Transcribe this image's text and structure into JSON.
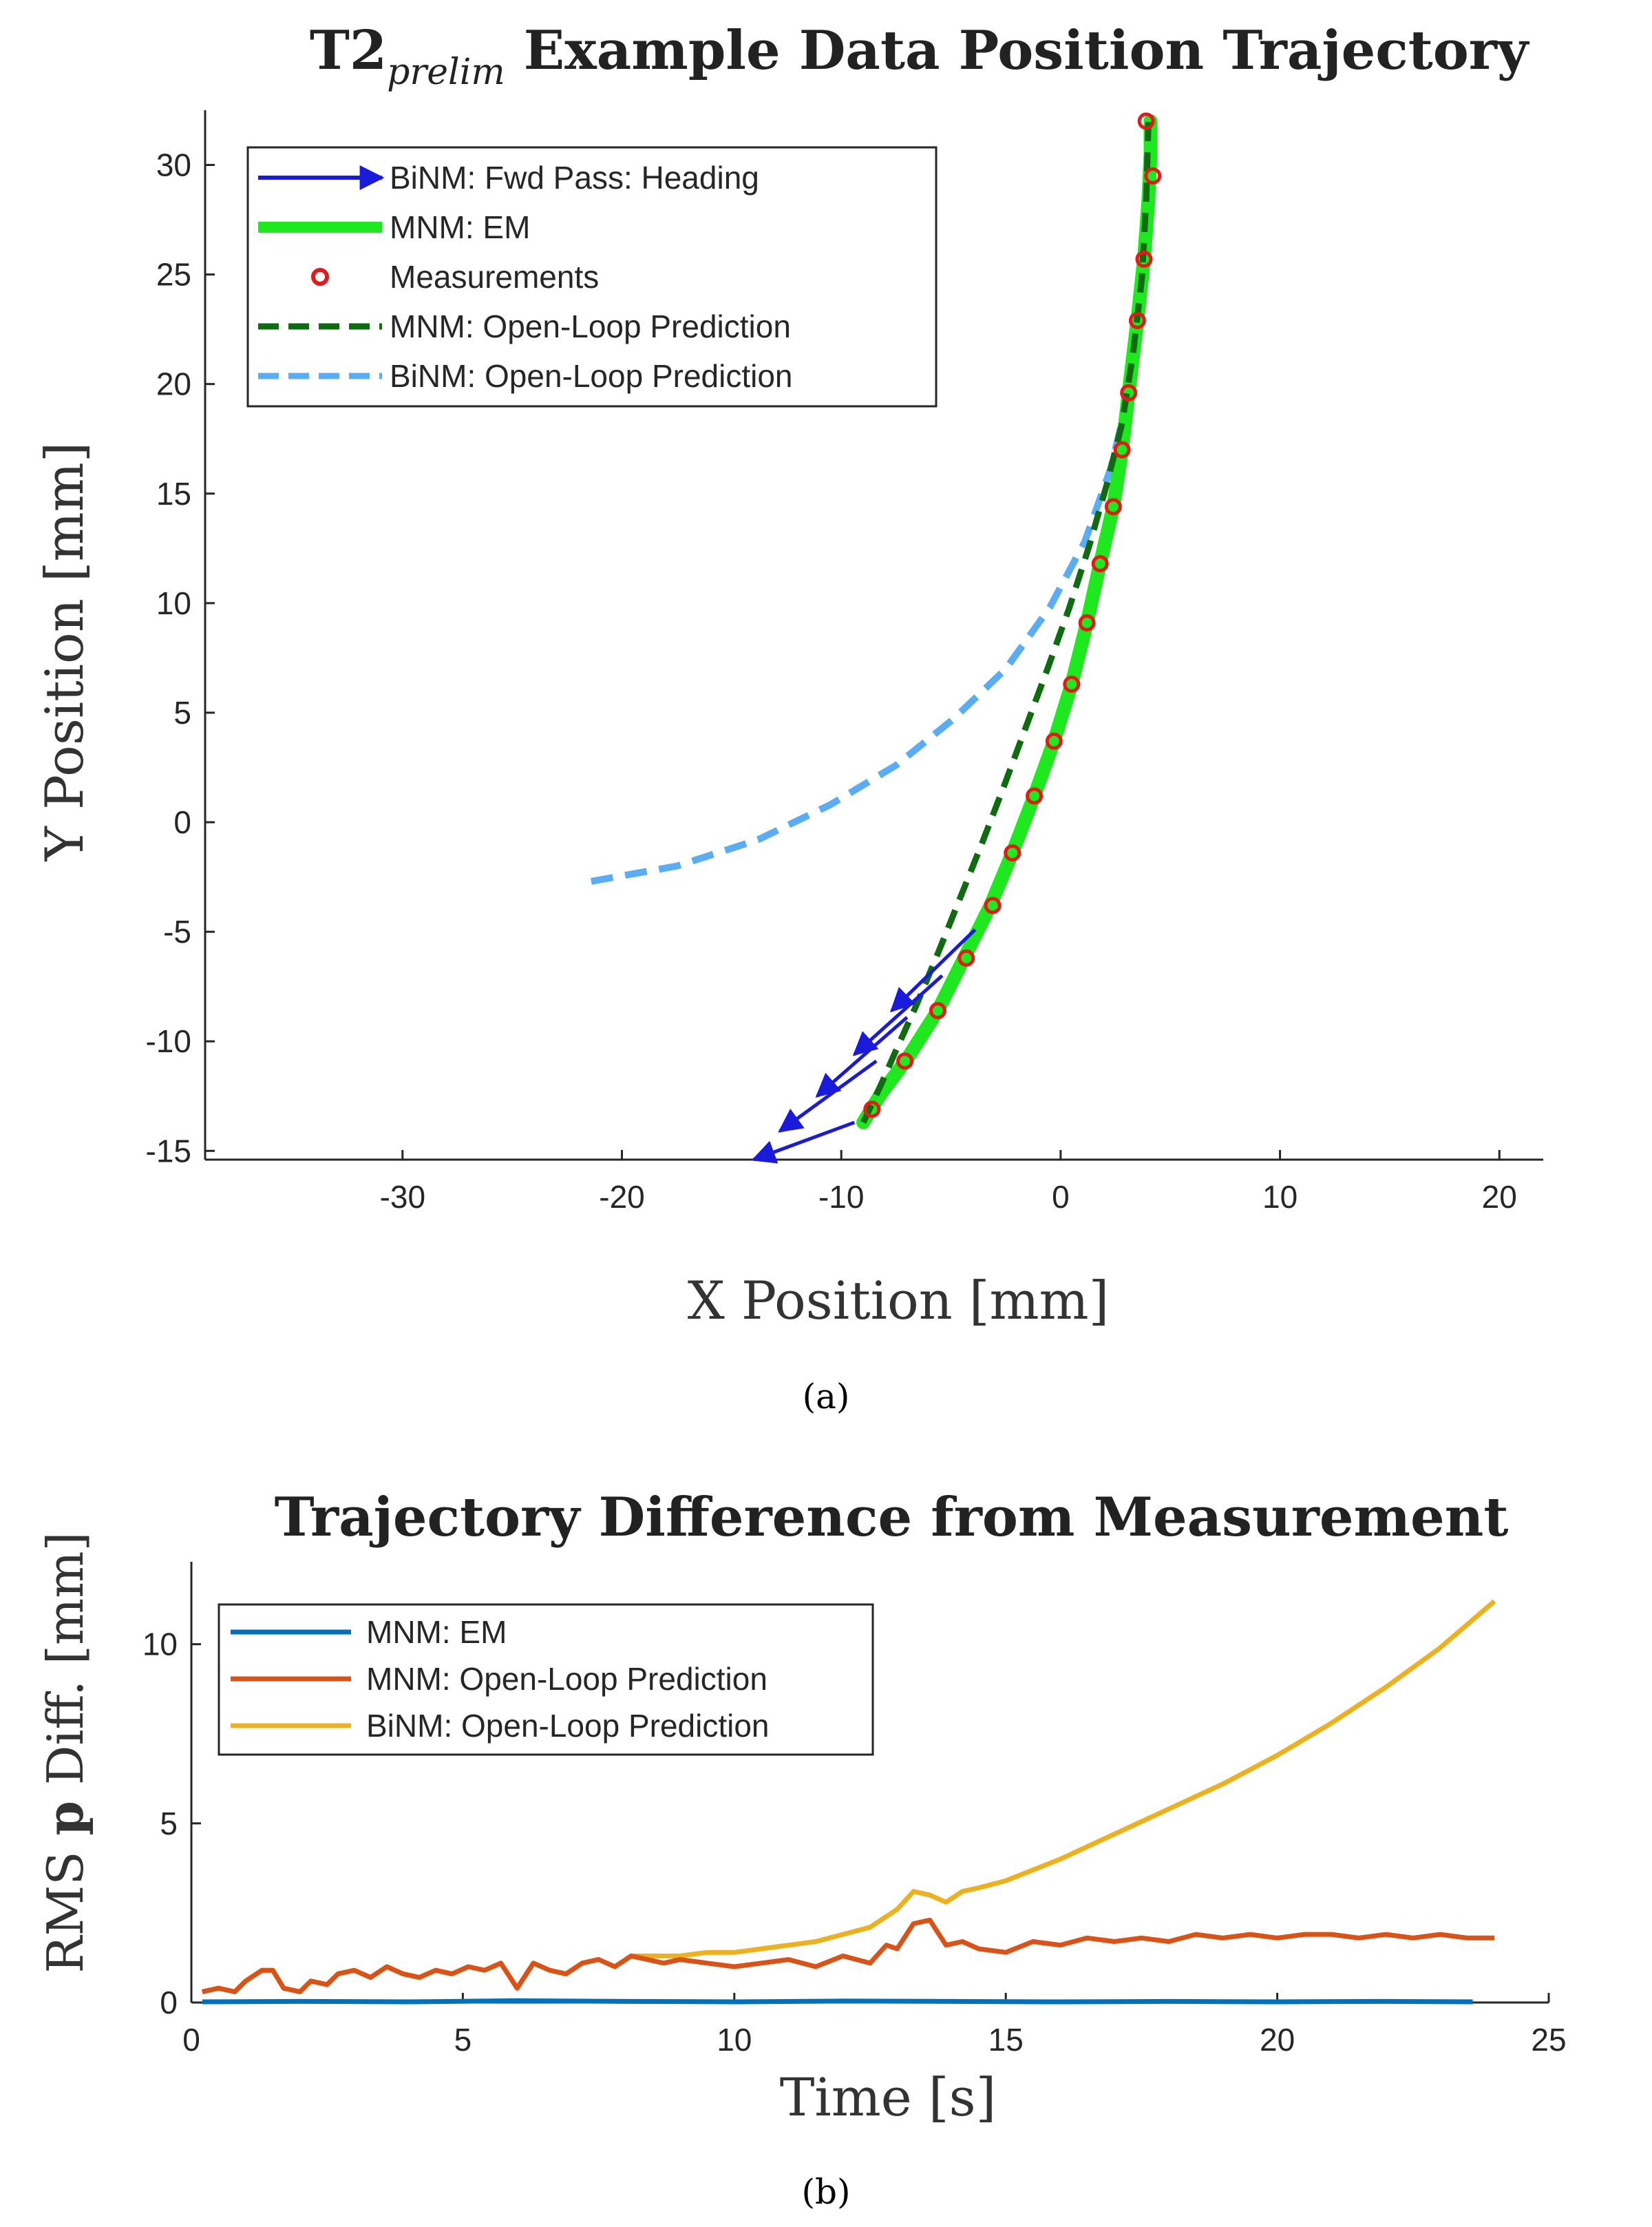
{
  "chart_data": [
    {
      "type": "line",
      "title_main": "T2",
      "title_sub": "prelim",
      "title_rest": "Example Data Position Trajectory",
      "xlabel": "X Position [mm]",
      "ylabel": "Y Position [mm]",
      "xlim": [
        -39,
        22
      ],
      "ylim": [
        -15.4,
        32.5
      ],
      "xticks": [
        -30,
        -20,
        -10,
        0,
        10,
        20
      ],
      "yticks": [
        -15,
        -10,
        -5,
        0,
        5,
        10,
        15,
        20,
        25,
        30
      ],
      "legend_position": "top-left",
      "caption": "(a)",
      "colors": {
        "arrow": "#1a1adb",
        "em": "#1ee81e",
        "meas": "#e31a1c",
        "mnm_ol": "#0f6b0f",
        "binm_ol": "#5aacf5"
      },
      "series": [
        {
          "name": "BiNM: Fwd Pass: Heading",
          "style": "arrow",
          "arrows": [
            [
              [
                -3.9,
                -4.9
              ],
              [
                -7.7,
                -8.6
              ]
            ],
            [
              [
                -5.4,
                -7.0
              ],
              [
                -9.4,
                -10.6
              ]
            ],
            [
              [
                -7.0,
                -8.9
              ],
              [
                -11.1,
                -12.5
              ]
            ],
            [
              [
                -8.4,
                -10.9
              ],
              [
                -12.8,
                -14.1
              ]
            ],
            [
              [
                -9.4,
                -13.7
              ],
              [
                -14.0,
                -15.4
              ]
            ]
          ]
        },
        {
          "name": "MNM: EM",
          "style": "solid",
          "x": [
            -9.0,
            -8.2,
            -7.0,
            -5.6,
            -4.4,
            -3.2,
            -2.2,
            -1.2,
            -0.3,
            0.5,
            1.2,
            1.8,
            2.4,
            2.8,
            3.1,
            3.5,
            3.8,
            4.0,
            4.1,
            4.1
          ],
          "y": [
            -13.7,
            -12.4,
            -10.8,
            -8.6,
            -6.2,
            -3.8,
            -1.4,
            1.2,
            3.7,
            6.3,
            9.1,
            11.8,
            14.4,
            17.0,
            19.6,
            22.9,
            25.7,
            28.4,
            30.5,
            32.0
          ]
        },
        {
          "name": "Measurements",
          "style": "markers",
          "x": [
            -8.6,
            -7.1,
            -5.6,
            -4.3,
            -3.1,
            -2.2,
            -1.2,
            -0.3,
            0.5,
            1.2,
            1.8,
            2.4,
            2.8,
            3.1,
            3.5,
            3.8,
            4.2,
            3.9
          ],
          "y": [
            -13.1,
            -10.9,
            -8.6,
            -6.2,
            -3.8,
            -1.4,
            1.2,
            3.7,
            6.3,
            9.1,
            11.8,
            14.4,
            17.0,
            19.6,
            22.9,
            25.7,
            29.5,
            32.0
          ]
        },
        {
          "name": "MNM: Open-Loop Prediction",
          "style": "dashed",
          "x": [
            -9.0,
            -8.2,
            -7.5,
            -6.6,
            -5.6,
            -4.6,
            -3.6,
            -2.6,
            -1.6,
            -0.6,
            0.4,
            1.3,
            2.1,
            2.8,
            3.3,
            3.7,
            3.9,
            4.0
          ],
          "y": [
            -13.7,
            -12.0,
            -10.4,
            -8.4,
            -6.0,
            -3.5,
            -1.0,
            1.6,
            4.3,
            7.0,
            9.8,
            12.6,
            15.4,
            18.2,
            21.4,
            24.8,
            28.4,
            32.0
          ]
        },
        {
          "name": "BiNM: Open-Loop Prediction",
          "style": "dashed",
          "x": [
            -21.4,
            -17.5,
            -13.8,
            -10.5,
            -7.5,
            -4.9,
            -2.5,
            -0.5,
            1.1,
            2.3,
            3.2,
            3.8,
            4.0
          ],
          "y": [
            -2.7,
            -2.0,
            -0.8,
            0.8,
            2.6,
            4.7,
            7.0,
            9.8,
            12.8,
            16.2,
            20.0,
            25.0,
            30.0
          ]
        }
      ]
    },
    {
      "type": "line",
      "title": "Trajectory Difference from Measurement",
      "xlabel": "Time [s]",
      "ylabel_pre": "RMS ",
      "ylabel_bold": "p",
      "ylabel_post": " Diff. [mm]",
      "xlim": [
        0,
        25
      ],
      "ylim": [
        0,
        12.3
      ],
      "xticks": [
        0,
        5,
        10,
        15,
        20,
        25
      ],
      "yticks": [
        0,
        5,
        10
      ],
      "legend_position": "top-left",
      "caption": "(b)",
      "colors": {
        "em": "#0072bd",
        "mnm_ol": "#d95319",
        "binm_ol": "#edb120"
      },
      "series": [
        {
          "name": "MNM: EM",
          "x": [
            0.2,
            2,
            4,
            6,
            8,
            10,
            12,
            14,
            16,
            18,
            20,
            22,
            23.6
          ],
          "y": [
            0.02,
            0.03,
            0.02,
            0.05,
            0.03,
            0.02,
            0.04,
            0.03,
            0.02,
            0.03,
            0.02,
            0.03,
            0.02
          ]
        },
        {
          "name": "MNM: Open-Loop Prediction",
          "x": [
            0.2,
            0.5,
            0.8,
            1.0,
            1.3,
            1.5,
            1.7,
            2.0,
            2.2,
            2.5,
            2.7,
            3.0,
            3.3,
            3.6,
            3.9,
            4.2,
            4.5,
            4.8,
            5.1,
            5.4,
            5.7,
            6.0,
            6.3,
            6.6,
            6.9,
            7.2,
            7.5,
            7.8,
            8.1,
            8.4,
            8.7,
            9.0,
            9.5,
            10.0,
            10.5,
            11.0,
            11.5,
            12.0,
            12.5,
            12.8,
            13.0,
            13.3,
            13.6,
            13.9,
            14.2,
            14.5,
            15.0,
            15.5,
            16.0,
            16.5,
            17.0,
            17.5,
            18.0,
            18.5,
            19.0,
            19.5,
            20.0,
            20.5,
            21.0,
            21.5,
            22.0,
            22.5,
            23.0,
            23.5,
            24.0
          ],
          "y": [
            0.3,
            0.4,
            0.3,
            0.6,
            0.9,
            0.9,
            0.4,
            0.3,
            0.6,
            0.5,
            0.8,
            0.9,
            0.7,
            1.0,
            0.8,
            0.7,
            0.9,
            0.8,
            1.0,
            0.9,
            1.1,
            0.4,
            1.1,
            0.9,
            0.8,
            1.1,
            1.2,
            1.0,
            1.3,
            1.2,
            1.1,
            1.2,
            1.1,
            1.0,
            1.1,
            1.2,
            1.0,
            1.3,
            1.1,
            1.6,
            1.5,
            2.2,
            2.3,
            1.6,
            1.7,
            1.5,
            1.4,
            1.7,
            1.6,
            1.8,
            1.7,
            1.8,
            1.7,
            1.9,
            1.8,
            1.9,
            1.8,
            1.9,
            1.9,
            1.8,
            1.9,
            1.8,
            1.9,
            1.8,
            1.8
          ]
        },
        {
          "name": "BiNM: Open-Loop Prediction",
          "x": [
            0.2,
            0.5,
            0.8,
            1.0,
            1.3,
            1.5,
            1.7,
            2.0,
            2.2,
            2.5,
            2.7,
            3.0,
            3.3,
            3.6,
            3.9,
            4.2,
            4.5,
            4.8,
            5.1,
            5.4,
            5.7,
            6.0,
            6.3,
            6.6,
            6.9,
            7.2,
            7.5,
            7.8,
            8.1,
            8.4,
            8.7,
            9.0,
            9.5,
            10.0,
            10.5,
            11.0,
            11.5,
            12.0,
            12.5,
            12.8,
            13.0,
            13.3,
            13.6,
            13.9,
            14.2,
            14.5,
            15.0,
            16.0,
            17.0,
            18.0,
            19.0,
            20.0,
            21.0,
            22.0,
            23.0,
            24.0
          ],
          "y": [
            0.3,
            0.4,
            0.3,
            0.6,
            0.9,
            0.9,
            0.4,
            0.3,
            0.6,
            0.5,
            0.8,
            0.9,
            0.7,
            1.0,
            0.8,
            0.7,
            0.9,
            0.8,
            1.0,
            0.9,
            1.1,
            0.4,
            1.1,
            0.9,
            0.8,
            1.1,
            1.2,
            1.0,
            1.3,
            1.3,
            1.3,
            1.3,
            1.4,
            1.4,
            1.5,
            1.6,
            1.7,
            1.9,
            2.1,
            2.4,
            2.6,
            3.1,
            3.0,
            2.8,
            3.1,
            3.2,
            3.4,
            4.0,
            4.7,
            5.4,
            6.1,
            6.9,
            7.8,
            8.8,
            9.9,
            11.2
          ]
        }
      ]
    }
  ]
}
